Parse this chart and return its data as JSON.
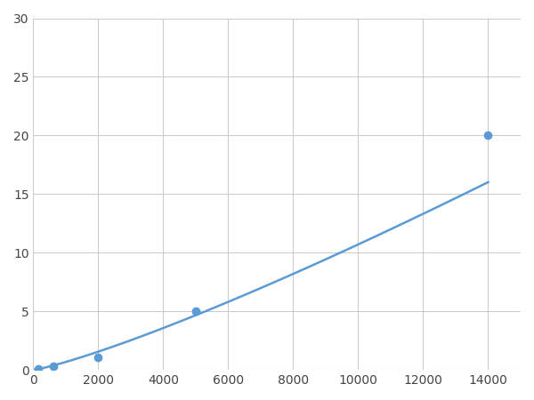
{
  "x": [
    156,
    625,
    2000,
    5000,
    14000
  ],
  "y": [
    0.1,
    0.3,
    1.1,
    5.0,
    20.0
  ],
  "line_color": "#5b9bd5",
  "marker_color": "#5b9bd5",
  "marker_size": 6,
  "line_width": 1.8,
  "xlim": [
    0,
    15000
  ],
  "ylim": [
    0,
    30
  ],
  "xticks": [
    0,
    2000,
    4000,
    6000,
    8000,
    10000,
    12000,
    14000
  ],
  "yticks": [
    0,
    5,
    10,
    15,
    20,
    25,
    30
  ],
  "grid_color": "#cccccc",
  "background_color": "#ffffff"
}
